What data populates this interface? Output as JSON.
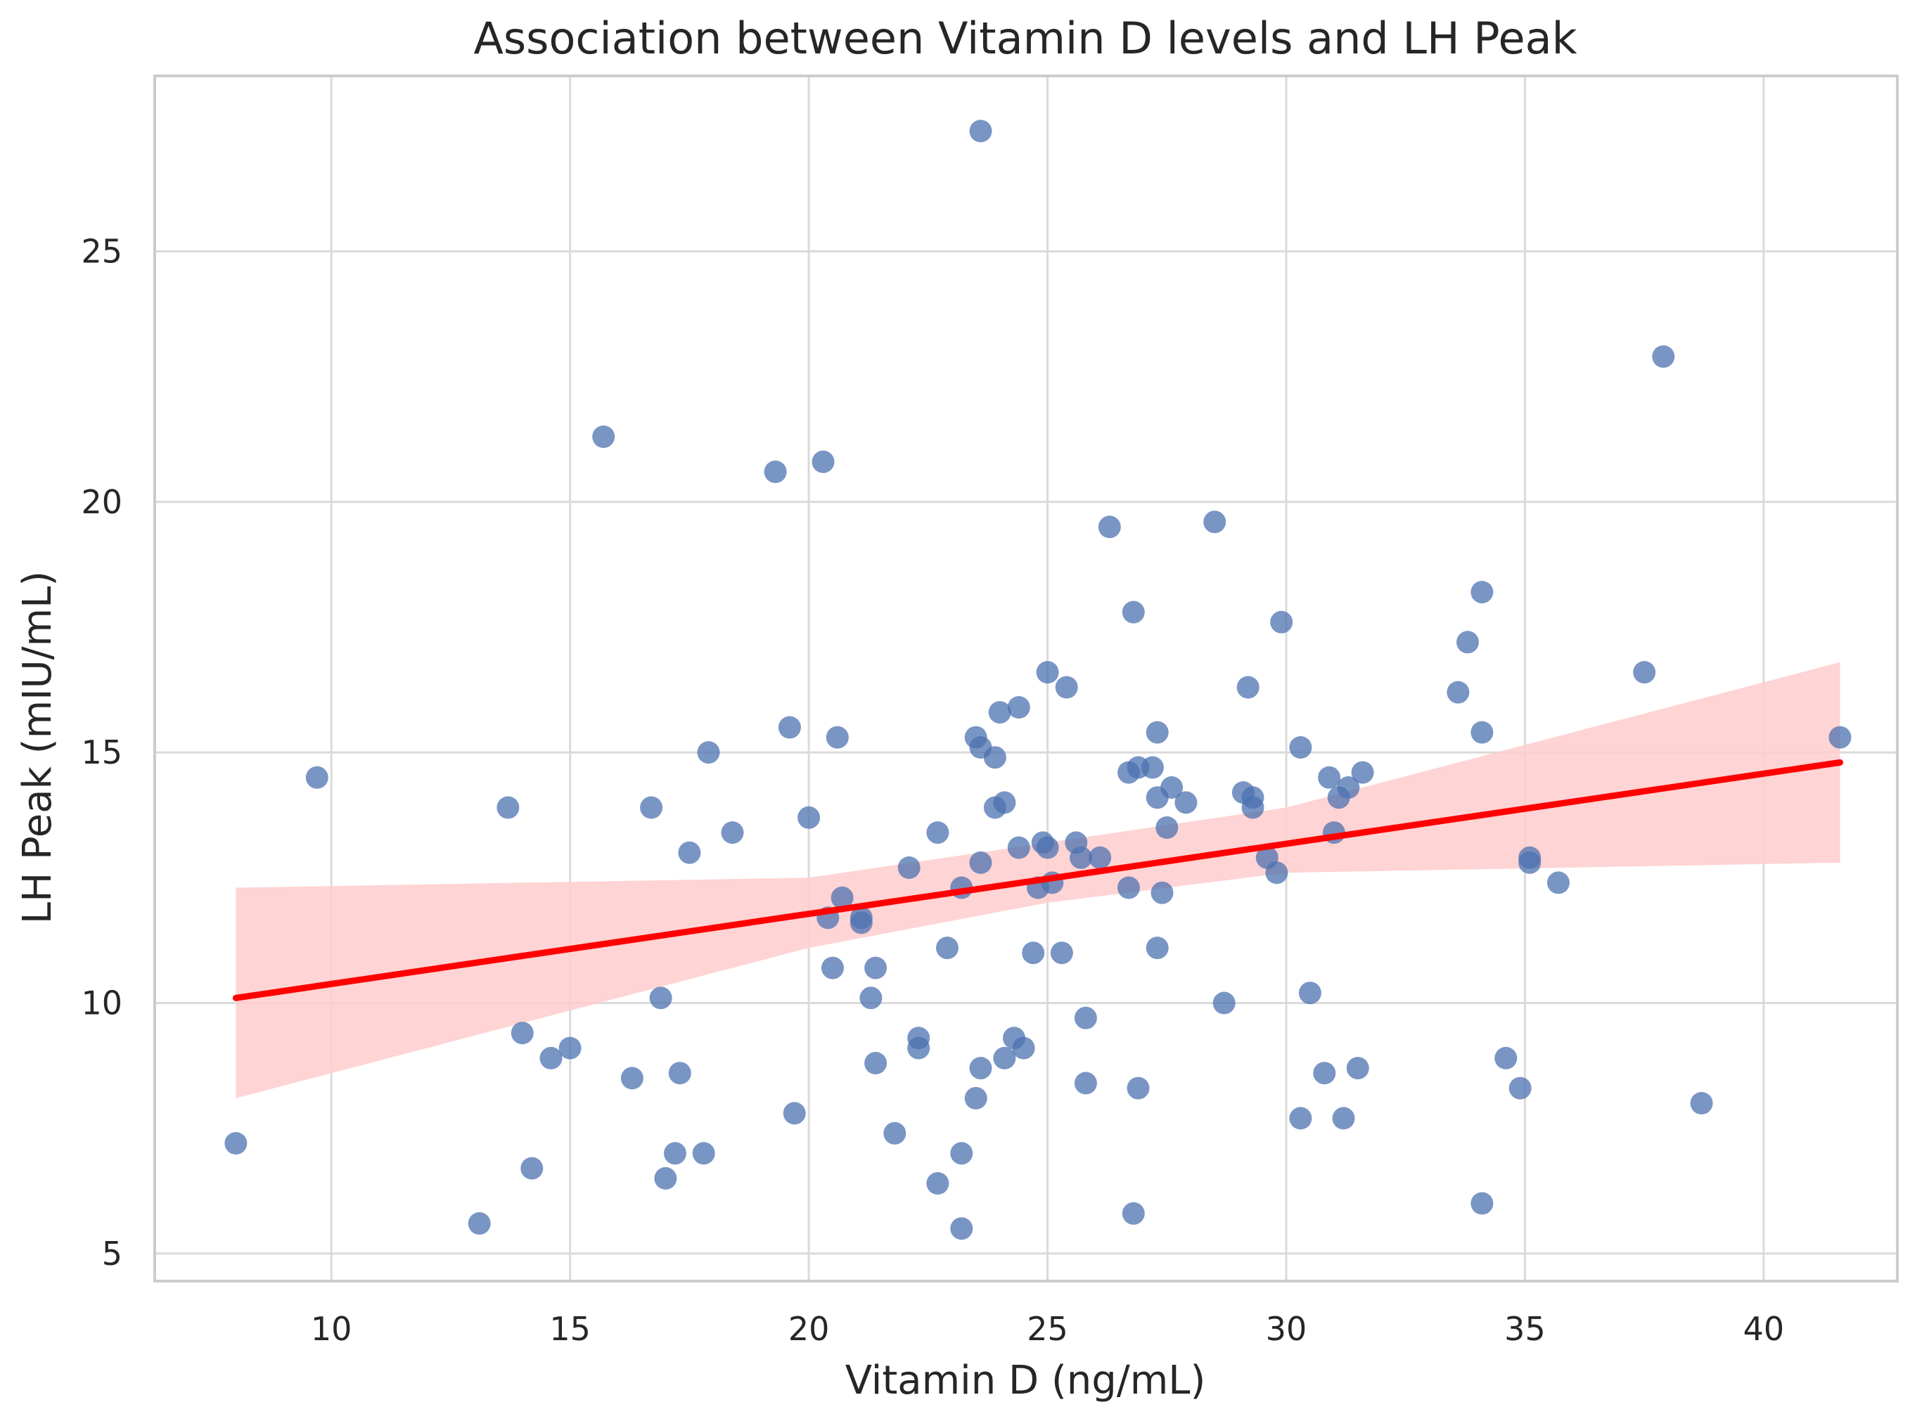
{
  "chart_data": {
    "type": "scatter",
    "title": "Association between Vitamin D levels and LH Peak",
    "xlabel": "Vitamin D (ng/mL)",
    "ylabel": "LH Peak (mIU/mL)",
    "xlim": [
      6.3,
      42.8
    ],
    "ylim": [
      4.45,
      28.5
    ],
    "xticks": [
      10,
      15,
      20,
      25,
      30,
      35,
      40
    ],
    "yticks": [
      5,
      10,
      15,
      20,
      25
    ],
    "xtick_labels": [
      "10",
      "15",
      "20",
      "25",
      "30",
      "35",
      "40"
    ],
    "ytick_labels": [
      "5",
      "10",
      "15",
      "20",
      "25"
    ],
    "grid": true,
    "point_color": "#4c72b0",
    "line_color": "#ff0000",
    "band_color": "#ffcccc",
    "regression": {
      "x": [
        8.0,
        41.6
      ],
      "y": [
        10.1,
        14.8
      ]
    },
    "confidence_band": {
      "x": [
        8.0,
        20.0,
        25.0,
        30.0,
        41.6
      ],
      "lower": [
        8.1,
        11.1,
        12.0,
        12.6,
        12.8
      ],
      "upper": [
        12.3,
        12.5,
        13.2,
        13.9,
        16.8
      ]
    },
    "points": [
      [
        8.0,
        7.2
      ],
      [
        9.7,
        14.5
      ],
      [
        13.1,
        5.6
      ],
      [
        13.7,
        13.9
      ],
      [
        14.0,
        9.4
      ],
      [
        14.2,
        6.7
      ],
      [
        14.6,
        8.9
      ],
      [
        15.0,
        9.1
      ],
      [
        15.7,
        21.3
      ],
      [
        16.3,
        8.5
      ],
      [
        16.7,
        13.9
      ],
      [
        16.9,
        10.1
      ],
      [
        17.0,
        6.5
      ],
      [
        17.2,
        7.0
      ],
      [
        17.3,
        8.6
      ],
      [
        17.5,
        13.0
      ],
      [
        17.8,
        7.0
      ],
      [
        17.9,
        15.0
      ],
      [
        18.4,
        13.4
      ],
      [
        19.3,
        20.6
      ],
      [
        19.6,
        15.5
      ],
      [
        19.7,
        7.8
      ],
      [
        20.0,
        13.7
      ],
      [
        20.3,
        20.8
      ],
      [
        20.4,
        11.7
      ],
      [
        20.5,
        10.7
      ],
      [
        20.6,
        15.3
      ],
      [
        20.7,
        12.1
      ],
      [
        21.1,
        11.6
      ],
      [
        21.1,
        11.7
      ],
      [
        21.3,
        10.1
      ],
      [
        21.4,
        10.7
      ],
      [
        21.4,
        8.8
      ],
      [
        21.8,
        7.4
      ],
      [
        22.1,
        12.7
      ],
      [
        22.3,
        9.1
      ],
      [
        22.3,
        9.3
      ],
      [
        22.7,
        6.4
      ],
      [
        22.7,
        13.4
      ],
      [
        22.9,
        11.1
      ],
      [
        23.2,
        7.0
      ],
      [
        23.2,
        12.3
      ],
      [
        23.2,
        5.5
      ],
      [
        23.5,
        15.3
      ],
      [
        23.6,
        15.1
      ],
      [
        23.6,
        12.8
      ],
      [
        23.6,
        8.7
      ],
      [
        23.5,
        8.1
      ],
      [
        23.6,
        27.4
      ],
      [
        23.9,
        13.9
      ],
      [
        23.9,
        14.9
      ],
      [
        24.0,
        15.8
      ],
      [
        24.1,
        14.0
      ],
      [
        24.1,
        8.9
      ],
      [
        24.3,
        9.3
      ],
      [
        24.4,
        15.9
      ],
      [
        24.4,
        13.1
      ],
      [
        24.5,
        9.1
      ],
      [
        24.7,
        11.0
      ],
      [
        24.8,
        12.3
      ],
      [
        24.9,
        13.2
      ],
      [
        25.0,
        13.1
      ],
      [
        25.0,
        16.6
      ],
      [
        25.1,
        12.4
      ],
      [
        25.3,
        11.0
      ],
      [
        25.4,
        16.3
      ],
      [
        25.6,
        13.2
      ],
      [
        25.7,
        12.9
      ],
      [
        25.8,
        9.7
      ],
      [
        25.8,
        8.4
      ],
      [
        26.1,
        12.9
      ],
      [
        26.3,
        19.5
      ],
      [
        26.7,
        14.6
      ],
      [
        26.7,
        12.3
      ],
      [
        26.8,
        17.8
      ],
      [
        26.8,
        5.8
      ],
      [
        26.9,
        14.7
      ],
      [
        26.9,
        8.3
      ],
      [
        27.2,
        14.7
      ],
      [
        27.3,
        14.1
      ],
      [
        27.3,
        15.4
      ],
      [
        27.3,
        11.1
      ],
      [
        27.4,
        12.2
      ],
      [
        27.5,
        13.5
      ],
      [
        27.6,
        14.3
      ],
      [
        27.9,
        14.0
      ],
      [
        28.5,
        19.6
      ],
      [
        28.7,
        10.0
      ],
      [
        29.1,
        14.2
      ],
      [
        29.2,
        16.3
      ],
      [
        29.3,
        14.1
      ],
      [
        29.3,
        13.9
      ],
      [
        29.6,
        12.9
      ],
      [
        29.8,
        12.6
      ],
      [
        29.9,
        17.6
      ],
      [
        30.3,
        15.1
      ],
      [
        30.3,
        7.7
      ],
      [
        30.5,
        10.2
      ],
      [
        30.8,
        8.6
      ],
      [
        30.9,
        14.5
      ],
      [
        31.0,
        13.4
      ],
      [
        31.1,
        14.1
      ],
      [
        31.2,
        7.7
      ],
      [
        31.3,
        14.3
      ],
      [
        31.5,
        8.7
      ],
      [
        31.6,
        14.6
      ],
      [
        33.6,
        16.2
      ],
      [
        33.8,
        17.2
      ],
      [
        34.1,
        18.2
      ],
      [
        34.1,
        15.4
      ],
      [
        34.1,
        6.0
      ],
      [
        34.6,
        8.9
      ],
      [
        34.9,
        8.3
      ],
      [
        35.1,
        12.9
      ],
      [
        35.1,
        12.8
      ],
      [
        35.7,
        12.4
      ],
      [
        37.5,
        16.6
      ],
      [
        37.9,
        22.9
      ],
      [
        38.7,
        8.0
      ],
      [
        41.6,
        15.3
      ]
    ]
  }
}
